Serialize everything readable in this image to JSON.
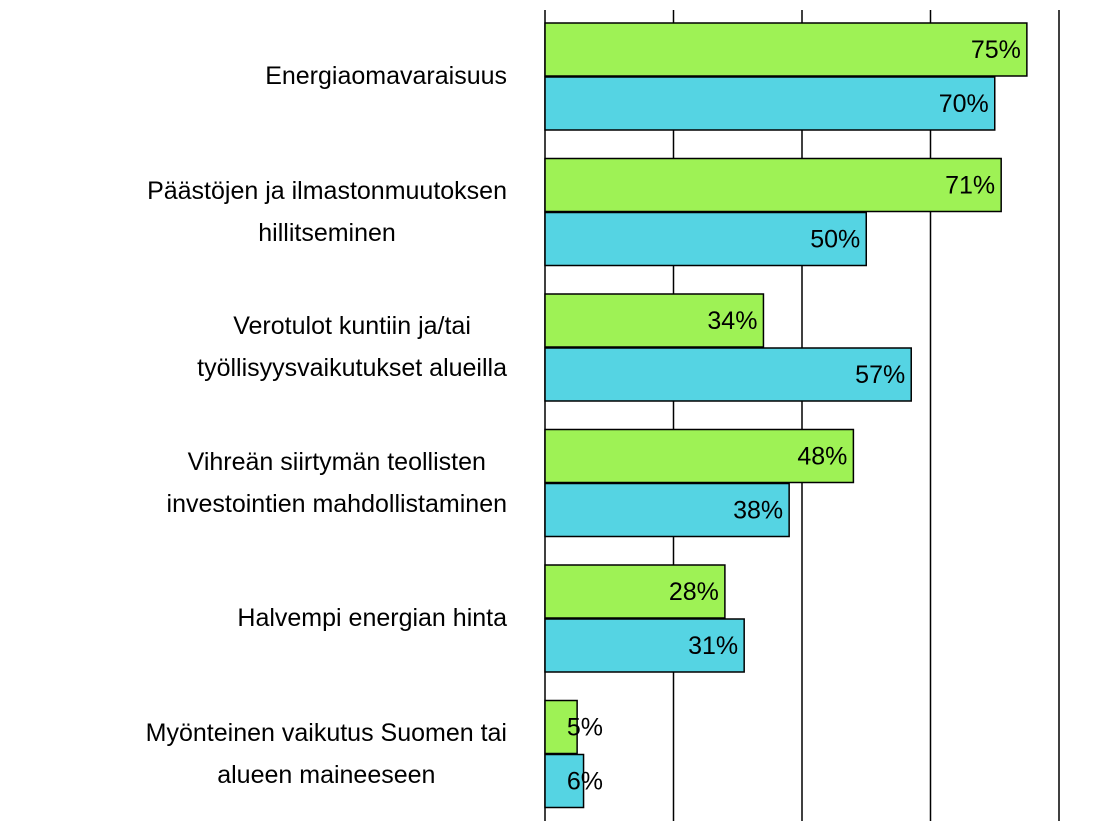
{
  "chart_data": {
    "type": "bar",
    "orientation": "horizontal",
    "categories": [
      "Energiaomavaraisuus",
      "Päästöjen ja ilmastonmuutoksen\nhillitseminen",
      "Verotulot kuntiin ja/tai\ntyöllisyysvaikutukset alueilla",
      "Vihreän siirtymän teollisten\ninvestointien mahdollistaminen",
      "Halvempi energian hinta",
      "Myönteinen vaikutus Suomen tai\nalueen maineeseen"
    ],
    "series": [
      {
        "color": "#9ef255",
        "values": [
          75,
          71,
          34,
          48,
          28,
          5
        ],
        "value_labels": [
          "75%",
          "71%",
          "34%",
          "48%",
          "28%",
          "5%"
        ]
      },
      {
        "color": "#55d4e3",
        "values": [
          70,
          50,
          57,
          38,
          31,
          6
        ],
        "value_labels": [
          "70%",
          "50%",
          "57%",
          "38%",
          "31%",
          "6%"
        ]
      }
    ],
    "xlim": [
      0,
      80
    ],
    "xticks": [
      0,
      20,
      40,
      60,
      80
    ],
    "grid": true
  }
}
